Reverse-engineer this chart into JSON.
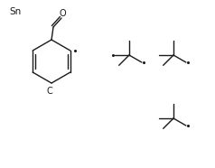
{
  "background": "#ffffff",
  "line_color": "#1a1a1a",
  "line_width": 1.0,
  "dot_size": 2.5,
  "font_size_sn": 7.5,
  "font_size_label": 7,
  "sn_label": "Sn",
  "c_label": "C",
  "o_label": "O",
  "figsize": [
    2.38,
    1.86
  ],
  "dpi": 100
}
